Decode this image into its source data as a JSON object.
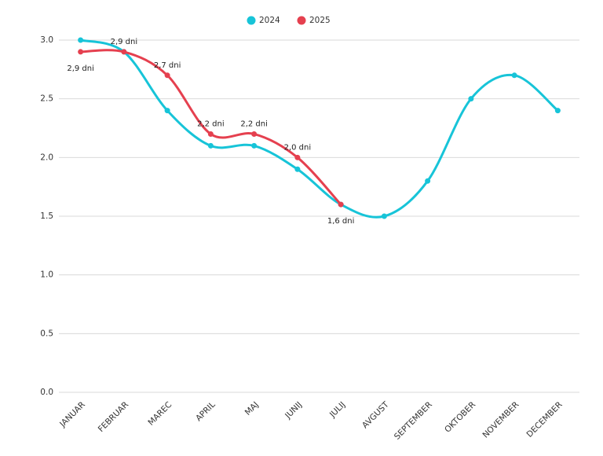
{
  "chart_data": {
    "type": "line",
    "categories": [
      "JANUAR",
      "FEBRUAR",
      "MAREC",
      "APRIL",
      "MAJ",
      "JUNIJ",
      "JULIJ",
      "AVGUST",
      "SEPTEMBER",
      "OKTOBER",
      "NOVEMBER",
      "DECEMBER"
    ],
    "series": [
      {
        "name": "2024",
        "color": "#17c4d8",
        "values": [
          3.0,
          2.9,
          2.4,
          2.1,
          2.1,
          1.9,
          1.6,
          1.5,
          1.8,
          2.5,
          2.7,
          2.4
        ]
      },
      {
        "name": "2025",
        "color": "#e5404f",
        "values": [
          2.9,
          2.9,
          2.7,
          2.2,
          2.2,
          2.0,
          1.6,
          null,
          null,
          null,
          null,
          null
        ],
        "value_labels": [
          "2,9 dni",
          "2,9 dni",
          "2,7 dni",
          "2,2 dni",
          "2,2 dni",
          "2,0 dni",
          "1,6 dni",
          null,
          null,
          null,
          null,
          null
        ]
      }
    ],
    "ylim": [
      0,
      3.0
    ],
    "yticks": [
      {
        "value": 0,
        "label": "0.0"
      },
      0.5,
      {
        "value": 1,
        "label": "1.0"
      },
      1.5,
      {
        "value": 2,
        "label": "2.0"
      },
      2.5,
      {
        "value": 3,
        "label": "3.0"
      }
    ],
    "grid": true,
    "legend": "top",
    "smooth": true
  }
}
